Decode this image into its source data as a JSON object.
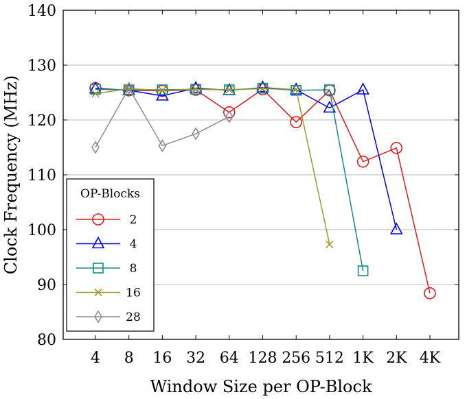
{
  "chart_data": {
    "type": "line",
    "xlabel": "Window Size per OP-Block",
    "ylabel": "Clock Frequency (MHz)",
    "categories": [
      "4",
      "8",
      "16",
      "32",
      "64",
      "128",
      "256",
      "512",
      "1K",
      "2K",
      "4K"
    ],
    "ylim": [
      80,
      140
    ],
    "yticks": [
      80,
      90,
      100,
      110,
      120,
      130,
      140
    ],
    "grid": "horizontal",
    "legend": {
      "title": "OP-Blocks",
      "placement": "bottom-left"
    },
    "series": [
      {
        "name": "2",
        "color": "#e41a1c",
        "marker": "circle",
        "values": [
          125.8,
          125.4,
          125.3,
          125.5,
          121.4,
          125.6,
          119.6,
          125.4,
          112.4,
          114.9,
          88.4
        ]
      },
      {
        "name": "4",
        "color": "#0000ee",
        "marker": "triangle",
        "values": [
          125.7,
          125.4,
          124.4,
          125.8,
          125.4,
          125.9,
          125.5,
          122.2,
          125.5,
          100.0,
          null
        ]
      },
      {
        "name": "8",
        "color": "#138a8a",
        "marker": "square",
        "values": [
          125.6,
          125.5,
          125.5,
          125.6,
          125.5,
          125.8,
          125.4,
          125.5,
          92.5,
          null,
          null
        ]
      },
      {
        "name": "16",
        "color": "#9c9a2a",
        "marker": "x",
        "values": [
          124.8,
          125.7,
          125.4,
          125.6,
          125.5,
          125.7,
          125.6,
          97.3,
          null,
          null,
          null
        ]
      },
      {
        "name": "28",
        "color": "#8c8c8c",
        "marker": "diamond",
        "values": [
          115.0,
          125.8,
          115.3,
          117.5,
          120.6,
          null,
          null,
          null,
          null,
          null,
          null
        ]
      }
    ]
  }
}
